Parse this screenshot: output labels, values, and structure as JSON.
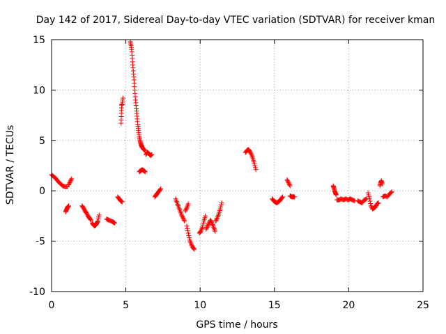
{
  "chart_data": {
    "type": "scatter",
    "title": "Day 142 of 2017, Sidereal Day-to-day VTEC variation (SDTVAR) for receiver kman",
    "xlabel": "GPS time / hours",
    "ylabel": "SDTVAR / TECUs",
    "xlim": [
      0,
      25
    ],
    "ylim": [
      -10,
      15
    ],
    "xticks": [
      0,
      5,
      10,
      15,
      20,
      25
    ],
    "yticks": [
      -10,
      -5,
      0,
      5,
      10,
      15
    ],
    "grid": true,
    "marker": "+",
    "color": "#ff0000",
    "segments": [
      {
        "x": [
          0.0,
          0.15,
          0.3,
          0.45,
          0.6,
          0.75,
          0.9,
          1.05
        ],
        "y": [
          1.6,
          1.4,
          1.2,
          0.9,
          0.7,
          0.5,
          0.4,
          0.4
        ]
      },
      {
        "x": [
          1.15,
          1.25,
          1.35
        ],
        "y": [
          0.6,
          0.9,
          1.2
        ]
      },
      {
        "x": [
          0.95,
          1.0,
          1.05,
          1.1,
          1.15
        ],
        "y": [
          -2.1,
          -1.9,
          -1.7,
          -1.6,
          -1.5
        ]
      },
      {
        "x": [
          2.05,
          2.15,
          2.25,
          2.35,
          2.45,
          2.55,
          2.65
        ],
        "y": [
          -1.5,
          -1.7,
          -2.0,
          -2.2,
          -2.5,
          -2.7,
          -2.9
        ]
      },
      {
        "x": [
          2.75,
          2.82,
          2.9,
          2.98,
          3.05,
          3.12,
          3.2
        ],
        "y": [
          -3.2,
          -3.4,
          -3.5,
          -3.4,
          -3.2,
          -3.0,
          -2.4
        ]
      },
      {
        "x": [
          3.7,
          3.85,
          4.0,
          4.15,
          4.25
        ],
        "y": [
          -2.8,
          -2.9,
          -3.0,
          -3.1,
          -3.2
        ]
      },
      {
        "x": [
          4.45,
          4.55,
          4.65,
          4.75
        ],
        "y": [
          -0.6,
          -0.8,
          -1.0,
          -1.1
        ]
      },
      {
        "x": [
          4.68,
          4.7,
          4.72,
          4.75,
          4.8
        ],
        "y": [
          6.7,
          7.7,
          8.5,
          8.6,
          9.2
        ]
      },
      {
        "x": [
          5.3,
          5.35,
          5.4,
          5.45,
          5.5,
          5.55,
          5.6,
          5.65,
          5.7,
          5.75,
          5.8,
          5.85,
          5.9,
          5.95,
          6.0,
          6.05,
          6.1,
          6.2,
          6.3
        ],
        "y": [
          14.8,
          14.4,
          13.8,
          12.8,
          11.9,
          11.0,
          10.0,
          9.0,
          8.2,
          7.4,
          6.6,
          6.0,
          5.4,
          5.0,
          4.7,
          4.5,
          4.3,
          4.1,
          4.0
        ]
      },
      {
        "x": [
          5.9,
          6.0,
          6.1,
          6.2,
          6.3
        ],
        "y": [
          1.9,
          2.0,
          2.1,
          2.0,
          1.9
        ]
      },
      {
        "x": [
          6.35,
          6.45,
          6.55,
          6.65,
          6.75
        ],
        "y": [
          3.6,
          3.8,
          3.7,
          3.5,
          3.6
        ]
      },
      {
        "x": [
          6.95,
          7.05,
          7.15,
          7.25,
          7.35
        ],
        "y": [
          -0.6,
          -0.4,
          -0.2,
          0.0,
          0.2
        ]
      },
      {
        "x": [
          8.35,
          8.45,
          8.55,
          8.65,
          8.75,
          8.85,
          8.95
        ],
        "y": [
          -0.8,
          -1.2,
          -1.6,
          -2.0,
          -2.4,
          -2.7,
          -3.0
        ]
      },
      {
        "x": [
          9.0,
          9.1,
          9.2
        ],
        "y": [
          -2.0,
          -1.7,
          -1.3
        ]
      },
      {
        "x": [
          9.1,
          9.2,
          9.3,
          9.4,
          9.5,
          9.6
        ],
        "y": [
          -3.5,
          -4.2,
          -4.9,
          -5.3,
          -5.6,
          -5.8
        ]
      },
      {
        "x": [
          9.95,
          10.05,
          10.15,
          10.25,
          10.35
        ],
        "y": [
          -4.2,
          -4.0,
          -3.6,
          -3.0,
          -2.5
        ]
      },
      {
        "x": [
          10.4,
          10.5,
          10.6,
          10.7,
          10.8,
          10.9,
          11.0
        ],
        "y": [
          -3.8,
          -3.5,
          -3.2,
          -2.9,
          -3.2,
          -3.6,
          -4.0
        ]
      },
      {
        "x": [
          11.05,
          11.15,
          11.25,
          11.35,
          11.45
        ],
        "y": [
          -3.0,
          -2.7,
          -2.3,
          -1.8,
          -1.2
        ]
      },
      {
        "x": [
          13.05,
          13.15,
          13.25,
          13.35,
          13.45,
          13.55,
          13.65,
          13.75
        ],
        "y": [
          3.8,
          4.0,
          4.1,
          3.9,
          3.6,
          3.2,
          2.7,
          2.1
        ]
      },
      {
        "x": [
          14.85,
          14.95,
          15.05,
          15.15,
          15.25,
          15.35,
          15.45,
          15.55
        ],
        "y": [
          -0.8,
          -1.0,
          -1.1,
          -1.2,
          -1.1,
          -1.0,
          -0.8,
          -0.6
        ]
      },
      {
        "x": [
          15.85,
          15.95,
          16.05
        ],
        "y": [
          1.1,
          0.8,
          0.5
        ]
      },
      {
        "x": [
          16.05,
          16.15,
          16.25,
          16.35
        ],
        "y": [
          -0.5,
          -0.6,
          -0.6,
          -0.6
        ]
      },
      {
        "x": [
          18.95,
          19.0,
          19.05,
          19.1,
          19.15
        ],
        "y": [
          0.5,
          0.3,
          0.0,
          -0.2,
          -0.4
        ]
      },
      {
        "x": [
          19.2,
          19.35,
          19.5,
          19.65,
          19.8,
          19.95,
          20.1,
          20.25,
          20.4
        ],
        "y": [
          -0.9,
          -0.9,
          -0.8,
          -0.9,
          -0.8,
          -0.9,
          -0.8,
          -0.9,
          -1.0
        ]
      },
      {
        "x": [
          20.6,
          20.75,
          20.9,
          21.05,
          21.2
        ],
        "y": [
          -1.0,
          -1.1,
          -1.2,
          -0.9,
          -0.8
        ]
      },
      {
        "x": [
          21.3,
          21.4,
          21.5,
          21.6,
          21.7,
          21.8,
          21.9,
          22.0
        ],
        "y": [
          -0.2,
          -0.8,
          -1.5,
          -1.8,
          -1.7,
          -1.6,
          -1.3,
          -1.2
        ]
      },
      {
        "x": [
          22.1,
          22.15,
          22.2,
          22.25
        ],
        "y": [
          0.5,
          0.8,
          1.0,
          0.7
        ]
      },
      {
        "x": [
          22.3,
          22.45,
          22.6,
          22.75,
          22.9
        ],
        "y": [
          -0.6,
          -0.5,
          -0.6,
          -0.3,
          -0.1
        ]
      }
    ]
  }
}
